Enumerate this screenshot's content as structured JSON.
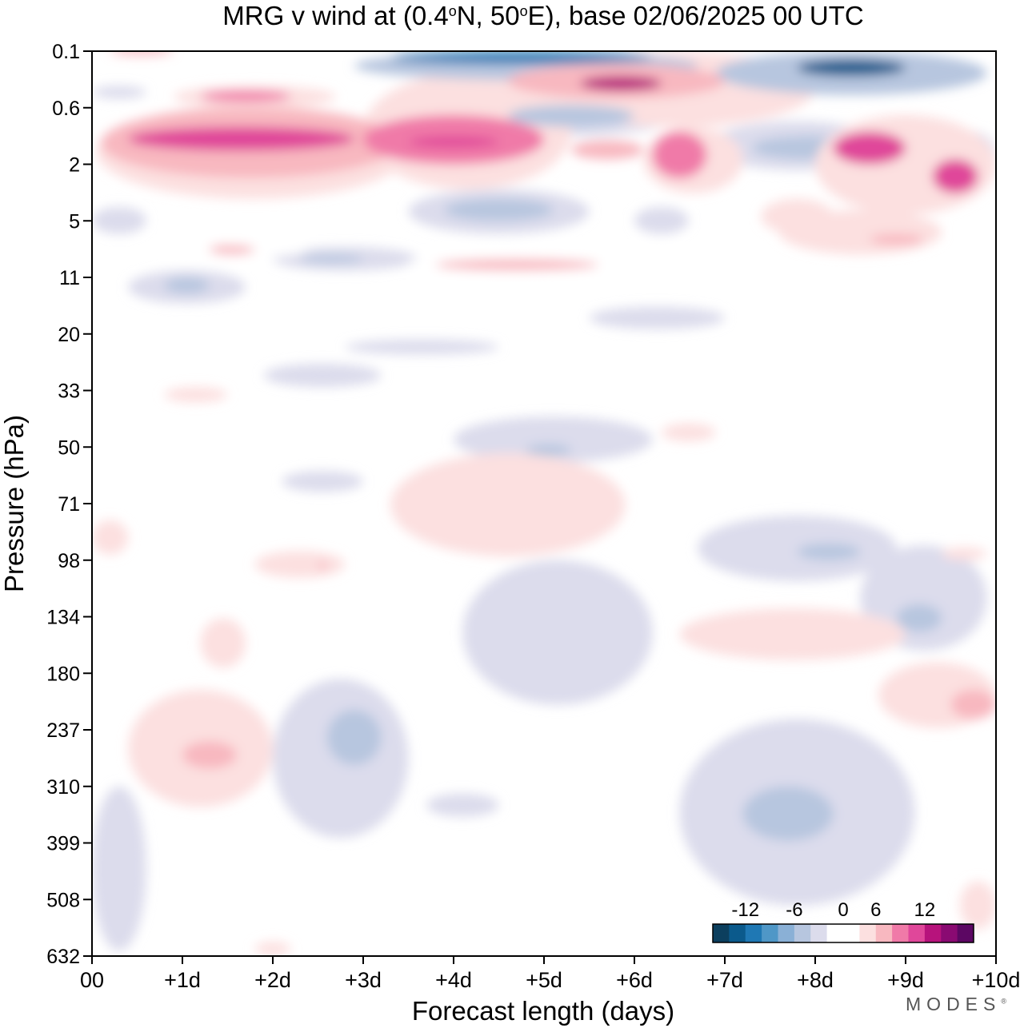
{
  "chart_data": {
    "type": "heatmap",
    "title": "MRG v wind at (0.4°N, 50°E),  base 02/06/2025  00 UTC",
    "title_parts": {
      "pre": "MRG v wind at (0.4",
      "deg1": "o",
      "mid": "N, 50",
      "deg2": "o",
      "post": "E),  base 02/06/2025  00 UTC"
    },
    "xlabel": "Forecast length (days)",
    "ylabel": "Pressure (hPa)",
    "x_ticks": [
      "00",
      "+1d",
      "+2d",
      "+3d",
      "+4d",
      "+5d",
      "+6d",
      "+7d",
      "+8d",
      "+9d",
      "+10d"
    ],
    "xlim": [
      0,
      10
    ],
    "y_ticks": [
      "0.1",
      "0.6",
      "2",
      "5",
      "11",
      "20",
      "33",
      "50",
      "71",
      "98",
      "134",
      "180",
      "237",
      "310",
      "399",
      "508",
      "632"
    ],
    "y_scale": "nonlinear pressure levels, top = 0.1 hPa, bottom = 632 hPa",
    "colorbar": {
      "tick_labels": [
        "-12",
        "-6",
        "0",
        "6",
        "12"
      ],
      "levels": [
        -15,
        -12.5,
        -10,
        -7.5,
        -5,
        -2.5,
        -0.5,
        0.5,
        2.5,
        5,
        7.5,
        10,
        12.5,
        15
      ],
      "colors": [
        "#0c3f5e",
        "#0b5a8c",
        "#1f78b4",
        "#4f97c7",
        "#8ab0d6",
        "#b7c6df",
        "#dcdcec",
        "#ffffff",
        "#ffffff",
        "#fce0e0",
        "#f8b8c0",
        "#f07aa8",
        "#e0479a",
        "#b7137c",
        "#8a0a72",
        "#5c0763"
      ],
      "placement": "bottom-right inside plot"
    },
    "regions": [
      {
        "x": [
          0.2,
          0.9
        ],
        "p": [
          0.1,
          0.1
        ],
        "v": 6
      },
      {
        "x": [
          1.2,
          2.2
        ],
        "p": [
          0.35,
          0.5
        ],
        "v": 9
      },
      {
        "x": [
          0.9,
          2.7
        ],
        "p": [
          0.3,
          0.6
        ],
        "v": 4
      },
      {
        "x": [
          0.4,
          2.9
        ],
        "p": [
          0.9,
          1.5
        ],
        "v": 12
      },
      {
        "x": [
          0.1,
          3.4
        ],
        "p": [
          0.6,
          2.5
        ],
        "v": 7
      },
      {
        "x": [
          0.05,
          3.5
        ],
        "p": [
          0.55,
          3.5
        ],
        "v": 3
      },
      {
        "x": [
          0.0,
          0.6
        ],
        "p": [
          0.3,
          0.45
        ],
        "v": -1.5
      },
      {
        "x": [
          3.5,
          4.5
        ],
        "p": [
          1.1,
          1.4
        ],
        "v": 12
      },
      {
        "x": [
          3.0,
          5.0
        ],
        "p": [
          0.7,
          2.0
        ],
        "v": 8
      },
      {
        "x": [
          3.0,
          5.3
        ],
        "p": [
          0.2,
          3.0
        ],
        "v": 3
      },
      {
        "x": [
          3.3,
          6.2
        ],
        "p": [
          0.1,
          0.15
        ],
        "v": -12
      },
      {
        "x": [
          2.9,
          6.7
        ],
        "p": [
          0.1,
          0.25
        ],
        "v": -5
      },
      {
        "x": [
          5.4,
          6.3
        ],
        "p": [
          0.22,
          0.35
        ],
        "v": 14
      },
      {
        "x": [
          4.6,
          7.0
        ],
        "p": [
          0.15,
          0.45
        ],
        "v": 7
      },
      {
        "x": [
          4.9,
          8.0
        ],
        "p": [
          0.1,
          0.9
        ],
        "v": 3
      },
      {
        "x": [
          4.6,
          6.0
        ],
        "p": [
          0.55,
          0.9
        ],
        "v": -4
      },
      {
        "x": [
          4.0,
          6.4
        ],
        "p": [
          0.5,
          1.1
        ],
        "v": -1.5
      },
      {
        "x": [
          5.3,
          6.1
        ],
        "p": [
          1.2,
          1.8
        ],
        "v": 6
      },
      {
        "x": [
          6.2,
          6.8
        ],
        "p": [
          1.0,
          2.5
        ],
        "v": 8
      },
      {
        "x": [
          6.1,
          7.2
        ],
        "p": [
          0.9,
          3.2
        ],
        "v": 3
      },
      {
        "x": [
          7.8,
          9.0
        ],
        "p": [
          0.13,
          0.22
        ],
        "v": -13
      },
      {
        "x": [
          6.9,
          9.9
        ],
        "p": [
          0.1,
          0.4
        ],
        "v": -5
      },
      {
        "x": [
          7.3,
          8.6
        ],
        "p": [
          1.1,
          1.8
        ],
        "v": -3
      },
      {
        "x": [
          6.8,
          8.8
        ],
        "p": [
          0.8,
          2.2
        ],
        "v": -1.5
      },
      {
        "x": [
          8.2,
          9.0
        ],
        "p": [
          1.0,
          2.0
        ],
        "v": 10
      },
      {
        "x": [
          9.3,
          9.8
        ],
        "p": [
          1.8,
          3.2
        ],
        "v": 11
      },
      {
        "x": [
          8.0,
          10.0
        ],
        "p": [
          0.7,
          4.5
        ],
        "v": 4
      },
      {
        "x": [
          9.5,
          10.0
        ],
        "p": [
          1.0,
          2.5
        ],
        "v": -1.5
      },
      {
        "x": [
          8.6,
          9.2
        ],
        "p": [
          6.0,
          7.0
        ],
        "v": 6
      },
      {
        "x": [
          7.6,
          9.4
        ],
        "p": [
          4.2,
          8.0
        ],
        "v": 3
      },
      {
        "x": [
          3.8,
          5.6
        ],
        "p": [
          8.5,
          10.0
        ],
        "v": 5
      },
      {
        "x": [
          3.5,
          6.9
        ],
        "p": [
          7.5,
          11.0
        ],
        "v": 2
      },
      {
        "x": [
          1.3,
          1.8
        ],
        "p": [
          7.0,
          8.0
        ],
        "v": 5
      },
      {
        "x": [
          0.8,
          2.4
        ],
        "p": [
          6.2,
          8.5
        ],
        "v": 2
      },
      {
        "x": [
          2.3,
          3.0
        ],
        "p": [
          8.0,
          9.0
        ],
        "v": -3
      },
      {
        "x": [
          2.0,
          3.6
        ],
        "p": [
          7.2,
          10.0
        ],
        "v": -1.5
      },
      {
        "x": [
          0.8,
          1.3
        ],
        "p": [
          11.0,
          13.0
        ],
        "v": -3
      },
      {
        "x": [
          0.4,
          1.7
        ],
        "p": [
          10.0,
          14.5
        ],
        "v": -1.5
      },
      {
        "x": [
          3.9,
          5.1
        ],
        "p": [
          3.5,
          5.0
        ],
        "v": -3
      },
      {
        "x": [
          3.5,
          5.5
        ],
        "p": [
          3.0,
          6.0
        ],
        "v": -1.5
      },
      {
        "x": [
          0.0,
          0.6
        ],
        "p": [
          4.0,
          6.0
        ],
        "v": -1.5
      },
      {
        "x": [
          1.3,
          1.7
        ],
        "p": [
          7.0,
          7.8
        ],
        "v": 5
      },
      {
        "x": [
          7.4,
          8.2
        ],
        "p": [
          3.5,
          6.0
        ],
        "v": 3
      },
      {
        "x": [
          6.0,
          6.6
        ],
        "p": [
          4.0,
          6.0
        ],
        "v": -1.5
      },
      {
        "x": [
          2.8,
          4.5
        ],
        "p": [
          21.0,
          24.0
        ],
        "v": -1.5
      },
      {
        "x": [
          1.9,
          3.2
        ],
        "p": [
          26.0,
          32.0
        ],
        "v": -1.5
      },
      {
        "x": [
          5.5,
          7.0
        ],
        "p": [
          15.0,
          19.0
        ],
        "v": -1.5
      },
      {
        "x": [
          0.8,
          1.5
        ],
        "p": [
          32.0,
          36.0
        ],
        "v": 3
      },
      {
        "x": [
          4.8,
          5.3
        ],
        "p": [
          49.0,
          53.0
        ],
        "v": -3
      },
      {
        "x": [
          4.0,
          6.2
        ],
        "p": [
          40.0,
          55.0
        ],
        "v": -1.5
      },
      {
        "x": [
          6.3,
          6.9
        ],
        "p": [
          42.0,
          48.0
        ],
        "v": 3
      },
      {
        "x": [
          3.3,
          5.9
        ],
        "p": [
          52.0,
          96.0
        ],
        "v": 3
      },
      {
        "x": [
          2.1,
          3.0
        ],
        "p": [
          58.0,
          66.0
        ],
        "v": -1.5
      },
      {
        "x": [
          0.0,
          0.4
        ],
        "p": [
          78.0,
          95.0
        ],
        "v": 3
      },
      {
        "x": [
          1.8,
          2.8
        ],
        "p": [
          93.0,
          108.0
        ],
        "v": 3
      },
      {
        "x": [
          2.5,
          2.6
        ],
        "p": [
          100.0,
          102.0
        ],
        "v": 5
      },
      {
        "x": [
          7.8,
          8.5
        ],
        "p": [
          89.0,
          98.0
        ],
        "v": -3
      },
      {
        "x": [
          6.7,
          8.9
        ],
        "p": [
          76.0,
          110.0
        ],
        "v": -1.5
      },
      {
        "x": [
          8.9,
          9.4
        ],
        "p": [
          125.0,
          145.0
        ],
        "v": -3
      },
      {
        "x": [
          8.5,
          9.9
        ],
        "p": [
          90.0,
          160.0
        ],
        "v": -1.5
      },
      {
        "x": [
          9.4,
          9.9
        ],
        "p": [
          91.0,
          98.0
        ],
        "v": 3
      },
      {
        "x": [
          4.1,
          6.2
        ],
        "p": [
          98.0,
          210.0
        ],
        "v": -1.5
      },
      {
        "x": [
          6.5,
          9.0
        ],
        "p": [
          128.0,
          168.0
        ],
        "v": 3
      },
      {
        "x": [
          8.7,
          10.0
        ],
        "p": [
          170.0,
          235.0
        ],
        "v": 3
      },
      {
        "x": [
          9.5,
          10.0
        ],
        "p": [
          195.0,
          225.0
        ],
        "v": 5
      },
      {
        "x": [
          1.2,
          1.7
        ],
        "p": [
          135.0,
          175.0
        ],
        "v": 3
      },
      {
        "x": [
          1.0,
          1.6
        ],
        "p": [
          250.0,
          285.0
        ],
        "v": 5
      },
      {
        "x": [
          0.4,
          2.0
        ],
        "p": [
          195.0,
          340.0
        ],
        "v": 3
      },
      {
        "x": [
          2.6,
          3.2
        ],
        "p": [
          215.0,
          280.0
        ],
        "v": -3
      },
      {
        "x": [
          2.0,
          3.5
        ],
        "p": [
          185.0,
          390.0
        ],
        "v": -1.5
      },
      {
        "x": [
          3.7,
          4.5
        ],
        "p": [
          320.0,
          355.0
        ],
        "v": -1.5
      },
      {
        "x": [
          7.2,
          8.2
        ],
        "p": [
          310.0,
          395.0
        ],
        "v": -3
      },
      {
        "x": [
          6.5,
          9.1
        ],
        "p": [
          225.0,
          520.0
        ],
        "v": -1.5
      },
      {
        "x": [
          0.0,
          0.6
        ],
        "p": [
          310.0,
          620.0
        ],
        "v": -1.5
      },
      {
        "x": [
          1.8,
          2.2
        ],
        "p": [
          598.0,
          632.0
        ],
        "v": 3
      },
      {
        "x": [
          9.6,
          10.0
        ],
        "p": [
          470.0,
          570.0
        ],
        "v": 3
      }
    ]
  },
  "watermark": "MODES",
  "watermark_mark": "®"
}
